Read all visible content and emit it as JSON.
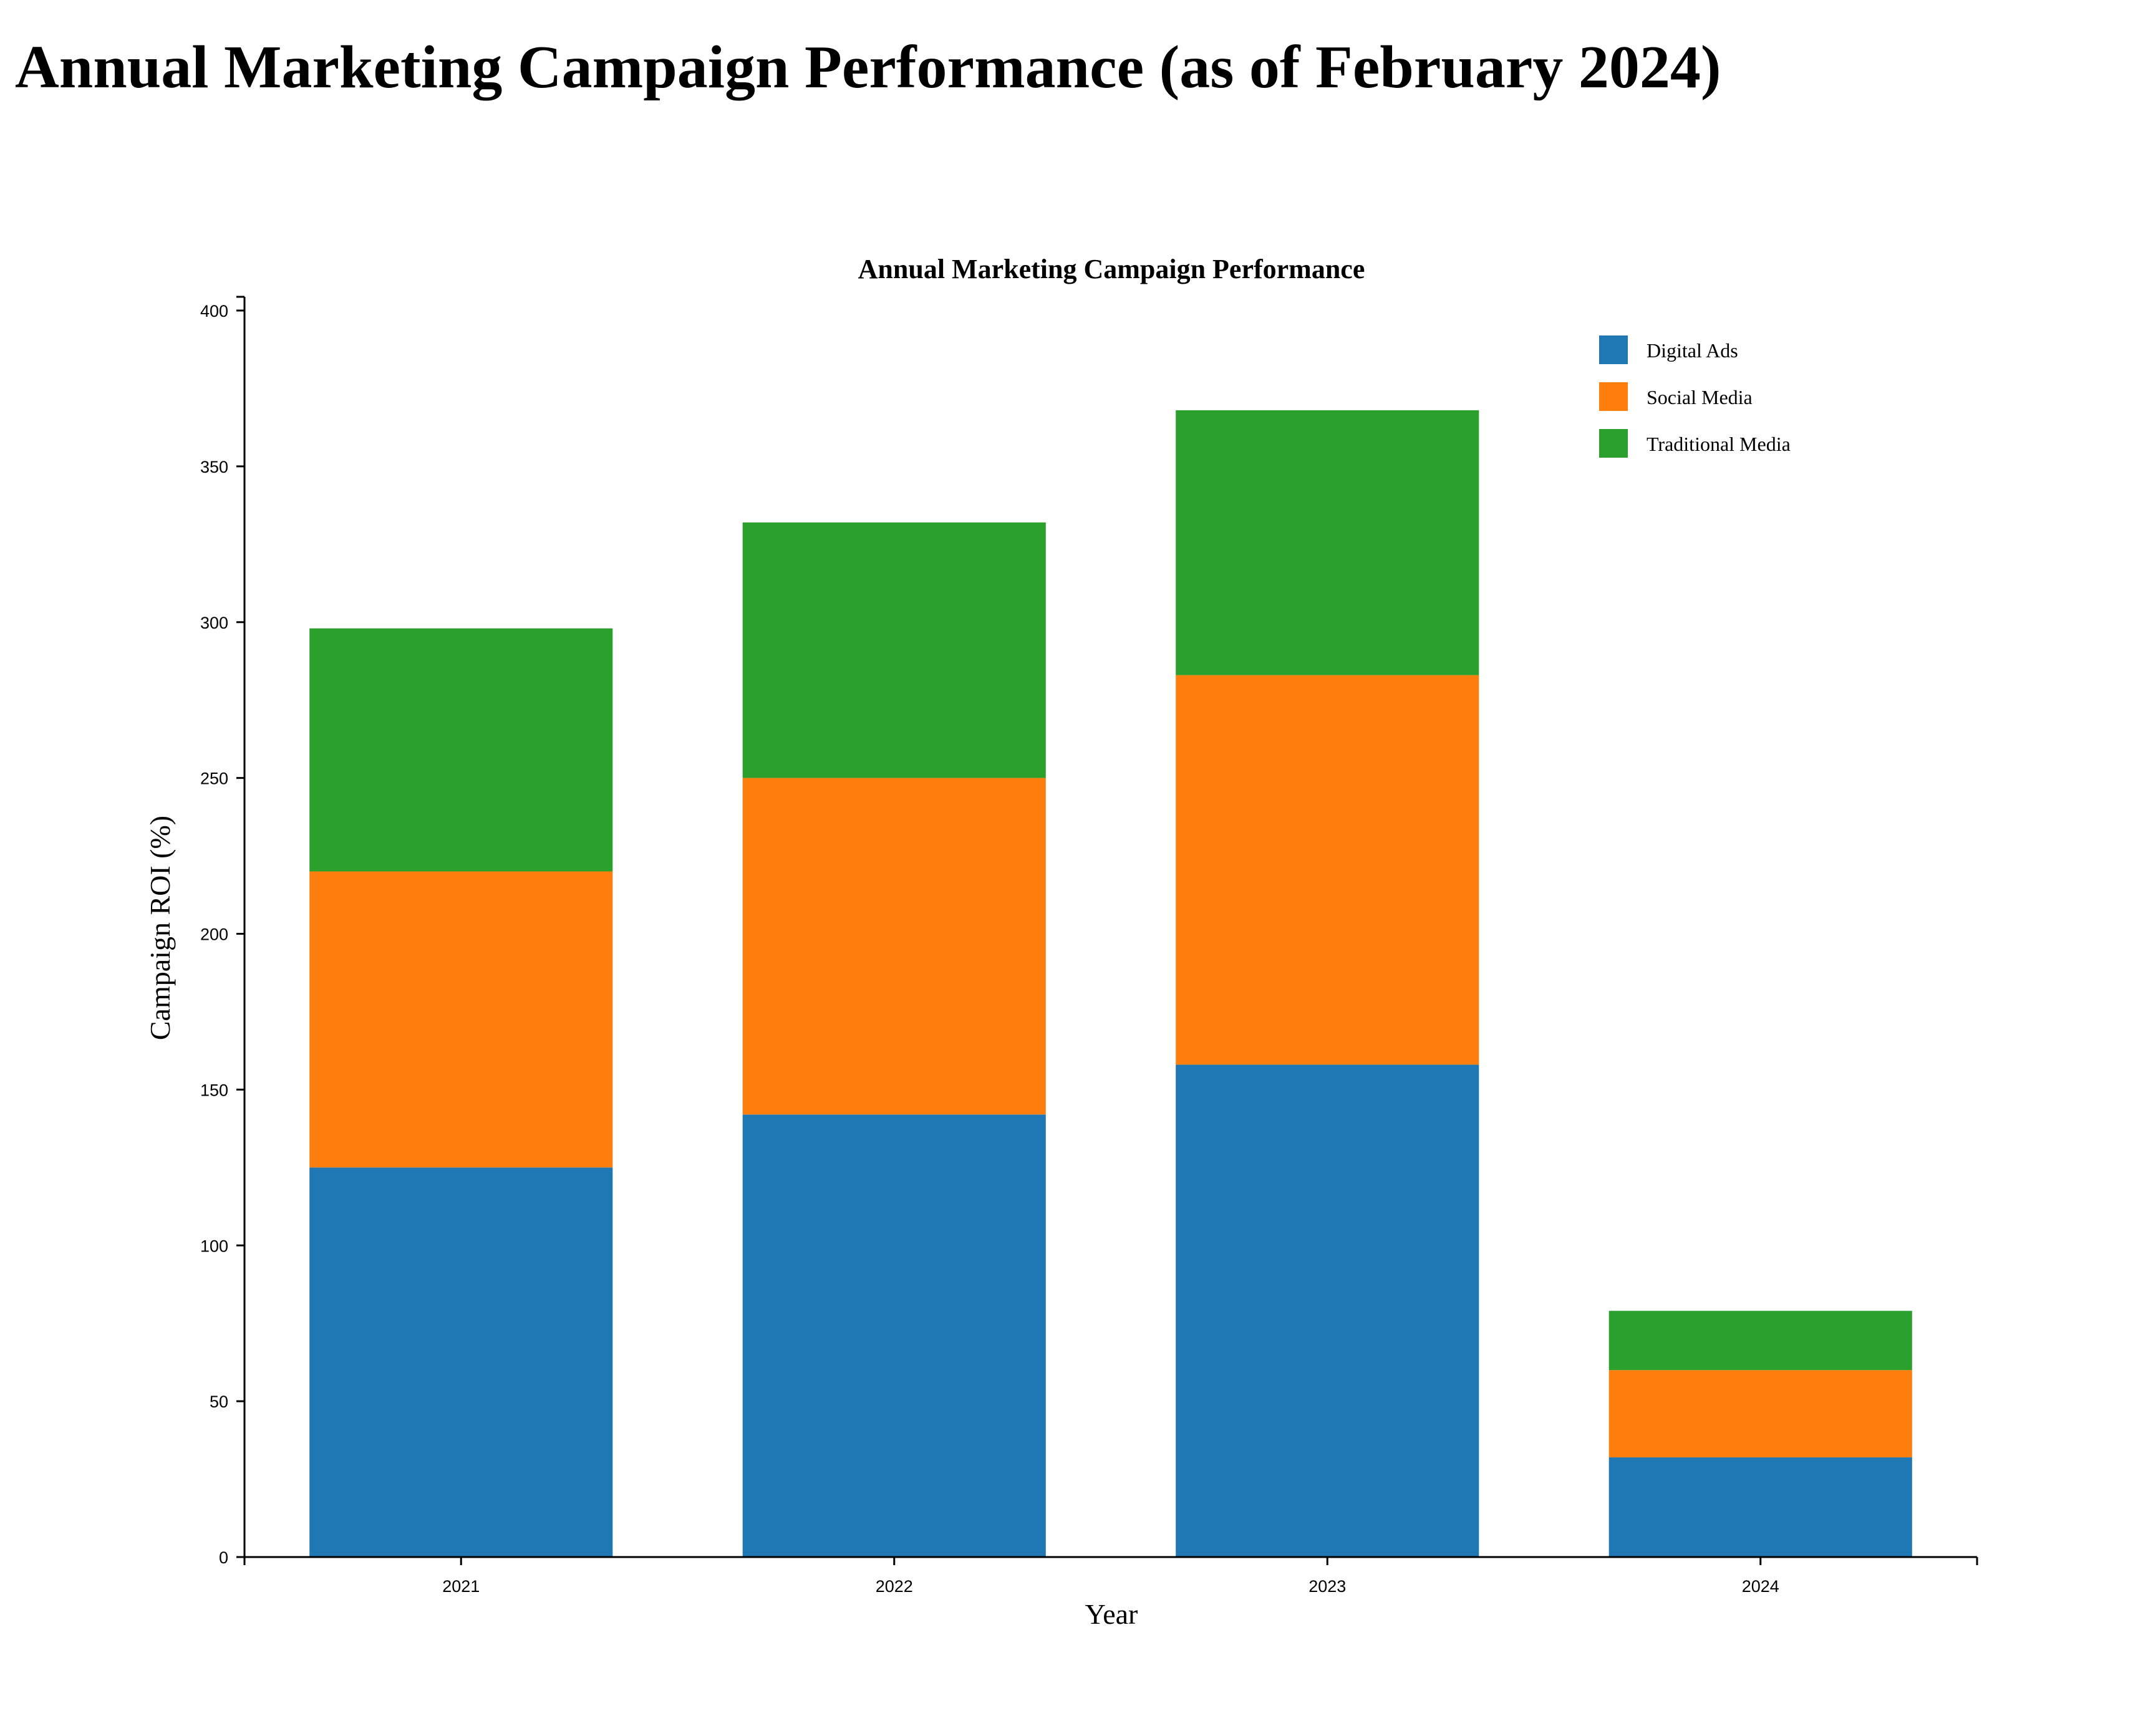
{
  "page": {
    "title": "Annual Marketing Campaign Performance (as of February 2024)"
  },
  "chart_data": {
    "type": "bar",
    "stacked": true,
    "title": "Annual Marketing Campaign Performance",
    "xlabel": "Year",
    "ylabel": "Campaign ROI (%)",
    "ylim": [
      0,
      400
    ],
    "yticks": [
      0,
      50,
      100,
      150,
      200,
      250,
      300,
      350,
      400
    ],
    "categories": [
      "2021",
      "2022",
      "2023",
      "2024"
    ],
    "series": [
      {
        "name": "Digital Ads",
        "color": "#1f77b4",
        "values": [
          125,
          142,
          158,
          32
        ]
      },
      {
        "name": "Social Media",
        "color": "#ff7f0e",
        "values": [
          95,
          108,
          125,
          28
        ]
      },
      {
        "name": "Traditional Media",
        "color": "#2ca02c",
        "values": [
          78,
          82,
          85,
          19
        ]
      }
    ],
    "legend_position": "top-right",
    "grid": false
  }
}
